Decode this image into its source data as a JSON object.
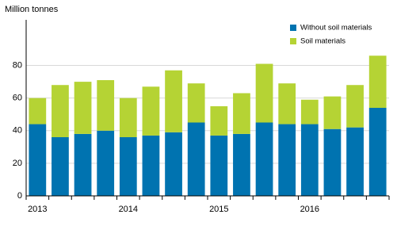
{
  "chart_data": {
    "type": "stacked_bar",
    "y_axis_label": "Million tonnes",
    "categories": [
      "2013",
      null,
      null,
      null,
      "2014",
      null,
      null,
      null,
      "2015",
      null,
      null,
      null,
      "2016",
      null,
      null,
      null
    ],
    "series": [
      {
        "name": "Without soil materials",
        "color": "#0073b0",
        "values": [
          44,
          36,
          38,
          40,
          36,
          37,
          39,
          45,
          37,
          38,
          45,
          44,
          44,
          41,
          42,
          54
        ]
      },
      {
        "name": "Soil materials",
        "color": "#b5d334",
        "values": [
          16,
          32,
          32,
          31,
          24,
          30,
          38,
          24,
          18,
          25,
          36,
          25,
          15,
          20,
          26,
          32
        ]
      }
    ],
    "ylim": [
      0,
      108
    ],
    "yticks": [
      0,
      20,
      40,
      60,
      80
    ],
    "grid": true,
    "legend": "top-right"
  }
}
